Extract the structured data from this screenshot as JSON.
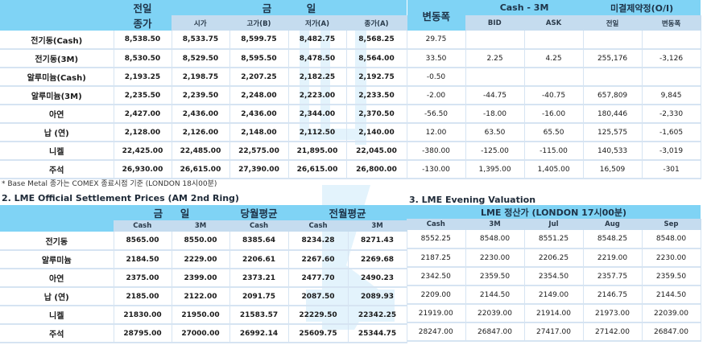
{
  "table1": {
    "header": {
      "prev_close_top": "전일",
      "prev_close_bottom": "종가",
      "today": "금          일",
      "change": "변동폭",
      "spread": "Cash - 3M",
      "open_interest": "미결제약정(O/I)",
      "sub": [
        "시가",
        "고가(B)",
        "저가(A)",
        "종가(A)",
        "BID",
        "ASK",
        "전일",
        "변동폭"
      ]
    },
    "rows": [
      {
        "label": "전기동(Cash)",
        "prev": "8,538.50",
        "open": "8,533.75",
        "high": "8,599.75",
        "low": "8,482.75",
        "close": "8,568.25",
        "change": "29.75",
        "bid": "",
        "ask": "",
        "oi_prev": "",
        "oi_change": ""
      },
      {
        "label": "전기동(3M)",
        "prev": "8,530.50",
        "open": "8,529.50",
        "high": "8,595.50",
        "low": "8,478.50",
        "close": "8,564.00",
        "change": "33.50",
        "bid": "2.25",
        "ask": "4.25",
        "oi_prev": "255,176",
        "oi_change": "-3,126"
      },
      {
        "label": "알루미늄(Cash)",
        "prev": "2,193.25",
        "open": "2,198.75",
        "high": "2,207.25",
        "low": "2,182.25",
        "close": "2,192.75",
        "change": "-0.50",
        "bid": "",
        "ask": "",
        "oi_prev": "",
        "oi_change": ""
      },
      {
        "label": "알루미늄(3M)",
        "prev": "2,235.50",
        "open": "2,239.50",
        "high": "2,248.00",
        "low": "2,223.00",
        "close": "2,233.50",
        "change": "-2.00",
        "bid": "-44.75",
        "ask": "-40.75",
        "oi_prev": "657,809",
        "oi_change": "9,845"
      },
      {
        "label": "아연",
        "prev": "2,427.00",
        "open": "2,436.00",
        "high": "2,436.00",
        "low": "2,344.00",
        "close": "2,370.50",
        "change": "-56.50",
        "bid": "-18.00",
        "ask": "-16.00",
        "oi_prev": "180,446",
        "oi_change": "-2,330"
      },
      {
        "label": "납 (연)",
        "prev": "2,128.00",
        "open": "2,126.00",
        "high": "2,148.00",
        "low": "2,112.50",
        "close": "2,140.00",
        "change": "12.00",
        "bid": "63.50",
        "ask": "65.50",
        "oi_prev": "125,575",
        "oi_change": "-1,605"
      },
      {
        "label": "니켈",
        "prev": "22,425.00",
        "open": "22,485.00",
        "high": "22,575.00",
        "low": "21,895.00",
        "close": "22,045.00",
        "change": "-380.00",
        "bid": "-125.00",
        "ask": "-115.00",
        "oi_prev": "140,533",
        "oi_change": "-3,019"
      },
      {
        "label": "주석",
        "prev": "26,930.00",
        "open": "26,615.00",
        "high": "27,390.00",
        "low": "26,615.00",
        "close": "26,800.00",
        "change": "-130.00",
        "bid": "1,395.00",
        "ask": "1,405.00",
        "oi_prev": "16,509",
        "oi_change": "-301"
      }
    ]
  },
  "note": "* Base Metal 종가는 COMEX 종료시점 기준 (LONDON 18시00분)",
  "section2": {
    "title": "2. LME Official Settlement Prices (AM 2nd Ring)",
    "header": {
      "today": "금     일",
      "month_avg": "당월평균",
      "prev_month_avg": "전월평균",
      "sub": [
        "Cash",
        "3M",
        "Cash",
        "Cash",
        "3M"
      ]
    },
    "rows": [
      {
        "label": "전기동",
        "cash": "8565.00",
        "m3": "8550.00",
        "month_cash": "8385.64",
        "prev_cash": "8234.28",
        "prev_3m": "8271.43"
      },
      {
        "label": "알루미늄",
        "cash": "2184.50",
        "m3": "2229.00",
        "month_cash": "2206.61",
        "prev_cash": "2267.60",
        "prev_3m": "2269.68"
      },
      {
        "label": "아연",
        "cash": "2375.00",
        "m3": "2399.00",
        "month_cash": "2373.21",
        "prev_cash": "2477.70",
        "prev_3m": "2490.23"
      },
      {
        "label": "납 (연)",
        "cash": "2185.00",
        "m3": "2122.00",
        "month_cash": "2091.75",
        "prev_cash": "2087.50",
        "prev_3m": "2089.93"
      },
      {
        "label": "니켈",
        "cash": "21830.00",
        "m3": "21950.00",
        "month_cash": "21583.57",
        "prev_cash": "22229.50",
        "prev_3m": "22342.25"
      },
      {
        "label": "주석",
        "cash": "28795.00",
        "m3": "27000.00",
        "month_cash": "26992.14",
        "prev_cash": "25609.75",
        "prev_3m": "25344.75"
      }
    ]
  },
  "section3": {
    "title": "3. LME Evening Valuation",
    "header": {
      "main": "LME 정산가 (LONDON 17시00분)",
      "sub": [
        "Cash",
        "3M",
        "Jul",
        "Aug",
        "Sep"
      ]
    },
    "rows": [
      {
        "cash": "8552.25",
        "m3": "8548.00",
        "jul": "8551.25",
        "aug": "8548.25",
        "sep": "8548.00"
      },
      {
        "cash": "2187.25",
        "m3": "2230.00",
        "jul": "2206.25",
        "aug": "2219.00",
        "sep": "2230.00"
      },
      {
        "cash": "2342.50",
        "m3": "2359.50",
        "jul": "2354.50",
        "aug": "2357.75",
        "sep": "2359.50"
      },
      {
        "cash": "2209.00",
        "m3": "2144.50",
        "jul": "2149.00",
        "aug": "2146.75",
        "sep": "2144.50"
      },
      {
        "cash": "21919.00",
        "m3": "22039.00",
        "jul": "21914.00",
        "aug": "21973.00",
        "sep": "22039.00"
      },
      {
        "cash": "28247.00",
        "m3": "26847.00",
        "jul": "27417.00",
        "aug": "27142.00",
        "sep": "26847.00"
      }
    ]
  },
  "colors": {
    "header_main": "#7fd3f5",
    "header_sub": "#c5dcef",
    "grid": "#d6e4f2"
  }
}
